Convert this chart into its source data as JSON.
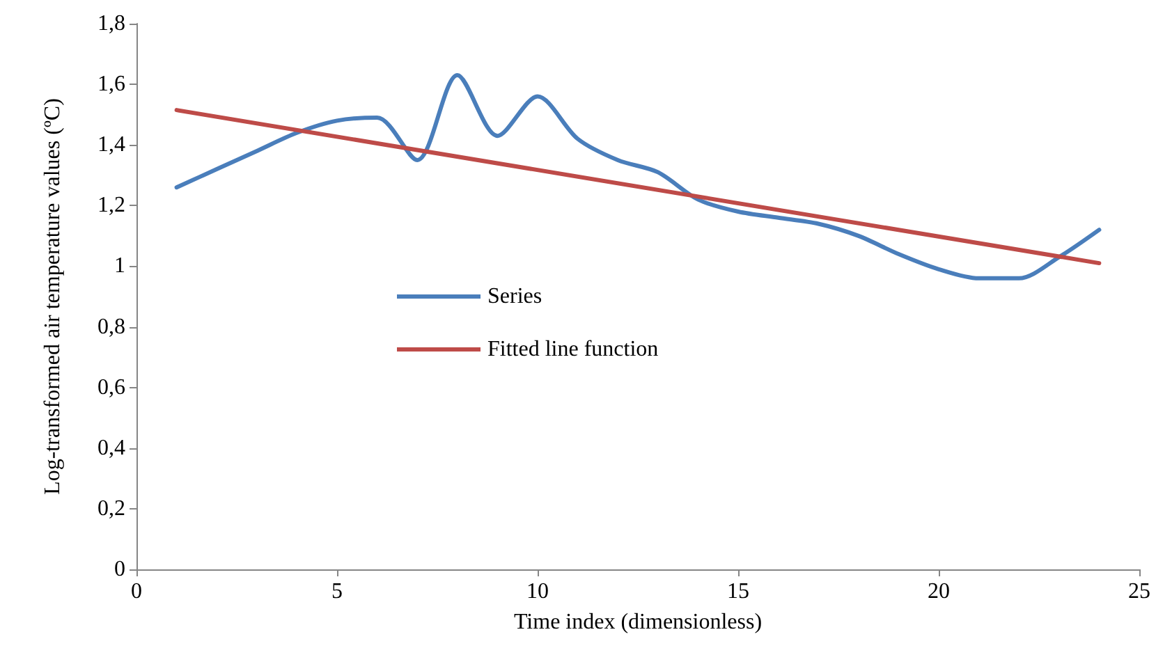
{
  "chart_data": {
    "type": "line",
    "xlabel": "Time index (dimensionless)",
    "ylabel": "Log-transformed air temperature values (ºC)",
    "xlim": [
      0,
      25
    ],
    "xticks": [
      0,
      5,
      10,
      15,
      20,
      25
    ],
    "ylim": [
      0,
      1.8
    ],
    "yticks": [
      0,
      {
        "value": 0.2,
        "label": "0,2"
      },
      {
        "value": 0.4,
        "label": "0,4"
      },
      {
        "value": 0.6,
        "label": "0,6"
      },
      {
        "value": 0.8,
        "label": "0,8"
      },
      1,
      {
        "value": 1.2,
        "label": "1,2"
      },
      {
        "value": 1.4,
        "label": "1,4"
      },
      {
        "value": 1.6,
        "label": "1,6"
      },
      {
        "value": 1.8,
        "label": "1,8"
      }
    ],
    "x": [
      1,
      2,
      3,
      4,
      5,
      6,
      7,
      8,
      9,
      10,
      11,
      12,
      13,
      14,
      15,
      16,
      17,
      18,
      19,
      20,
      21,
      22,
      23,
      24
    ],
    "series": [
      {
        "name": "Series",
        "color": "#4a7ebb",
        "values": [
          1.26,
          1.32,
          1.38,
          1.44,
          1.48,
          1.49,
          1.35,
          1.63,
          1.43,
          1.56,
          1.42,
          1.35,
          1.31,
          1.22,
          1.18,
          1.16,
          1.14,
          1.1,
          1.04,
          0.99,
          0.96,
          0.96,
          1.03,
          1.12
        ]
      },
      {
        "name": "Fitted line function",
        "color": "#be4b48",
        "x": [
          1,
          24
        ],
        "values": [
          1.515,
          1.01
        ]
      }
    ],
    "grid": false,
    "legend": "left",
    "marker": "none",
    "line_style": "solid"
  }
}
